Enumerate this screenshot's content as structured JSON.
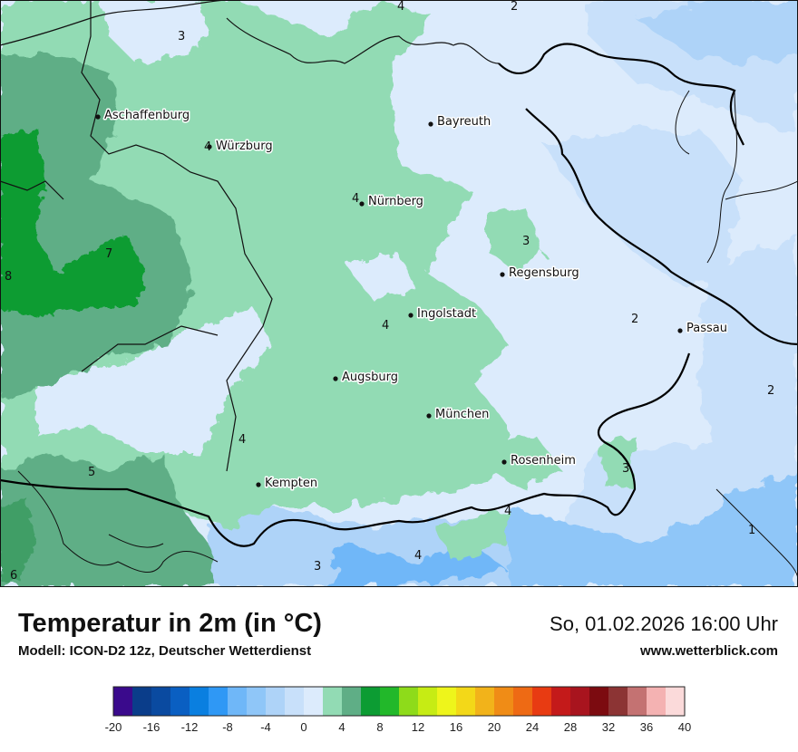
{
  "header": {
    "title": "Temperatur in 2m (in °C)",
    "model": "Modell: ICON-D2 12z, Deutscher Wetterdienst",
    "datetime": "So, 01.02.2026 16:00 Uhr",
    "url": "www.wetterblick.com"
  },
  "cities": [
    {
      "name": "Aschaffenburg"
    },
    {
      "name": "Bayreuth"
    },
    {
      "name": "Würzburg"
    },
    {
      "name": "Nürnberg"
    },
    {
      "name": "Regensburg"
    },
    {
      "name": "Ingolstadt"
    },
    {
      "name": "Passau"
    },
    {
      "name": "Augsburg"
    },
    {
      "name": "München"
    },
    {
      "name": "Rosenheim"
    },
    {
      "name": "Kempten"
    }
  ],
  "isolabels": [
    "4",
    "2",
    "3",
    "4",
    "7",
    "8",
    "4",
    "3",
    "4",
    "2",
    "4",
    "2",
    "5",
    "3",
    "4",
    "3",
    "4",
    "6",
    "1"
  ],
  "legend": {
    "ticks": [
      "-20",
      "-16",
      "-12",
      "-8",
      "-4",
      "0",
      "4",
      "8",
      "12",
      "16",
      "20",
      "24",
      "28",
      "32",
      "36",
      "40"
    ],
    "colors": [
      "#3a0a8c",
      "#0a3d8a",
      "#0a4aa0",
      "#0a5fc2",
      "#0a7fe0",
      "#2f98f5",
      "#6fb7f8",
      "#8fc6f8",
      "#aed3f8",
      "#c8e0fa",
      "#dcebfc",
      "#92dbb4",
      "#5fae86",
      "#0c9c33",
      "#22b82a",
      "#8edb1a",
      "#c6ec14",
      "#eef51b",
      "#f3d818",
      "#f2b31a",
      "#f08c16",
      "#ee6a14",
      "#e83b12",
      "#c41a1a",
      "#a8141e",
      "#7c0b10",
      "#8c3434",
      "#c47272",
      "#f4b2b2",
      "#fbdada"
    ]
  }
}
